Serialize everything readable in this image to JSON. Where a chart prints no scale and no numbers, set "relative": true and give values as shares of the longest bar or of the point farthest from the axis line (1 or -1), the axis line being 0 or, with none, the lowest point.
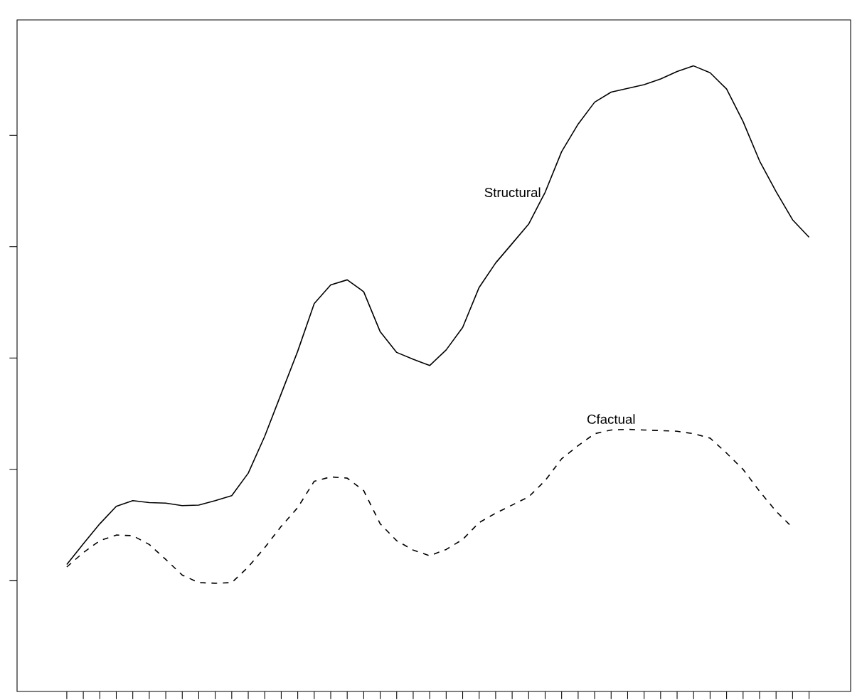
{
  "chart_data": {
    "type": "line",
    "relative": true,
    "categories": [
      null,
      null,
      null,
      null,
      null,
      null,
      null,
      null,
      null,
      null,
      null,
      null,
      null,
      null,
      null,
      null,
      null,
      null,
      null,
      null,
      null,
      null,
      null,
      null,
      null,
      null,
      null,
      null,
      null,
      null,
      null,
      null,
      null,
      null,
      null,
      null,
      null,
      null,
      null,
      null,
      null,
      null,
      null,
      null,
      null,
      null
    ],
    "series": [
      {
        "name": "Structural",
        "color": "#000000",
        "line_style": "solid",
        "values": [
          0.203,
          0.236,
          0.268,
          0.296,
          0.305,
          0.302,
          0.301,
          0.297,
          0.298,
          0.305,
          0.313,
          0.349,
          0.408,
          0.476,
          0.544,
          0.62,
          0.65,
          0.658,
          0.639,
          0.575,
          0.542,
          0.531,
          0.521,
          0.546,
          0.582,
          0.646,
          0.685,
          0.716,
          0.747,
          0.798,
          0.863,
          0.907,
          0.942,
          0.958,
          0.964,
          0.97,
          0.979,
          0.991,
          1,
          0.989,
          0.963,
          0.911,
          0.848,
          0.799,
          0.754,
          0.726
        ]
      },
      {
        "name": "Cfactual",
        "color": "#000000",
        "line_style": "dashed",
        "values": [
          0.199,
          0.222,
          0.241,
          0.25,
          0.249,
          0.235,
          0.211,
          0.186,
          0.174,
          0.173,
          0.174,
          0.199,
          0.23,
          0.264,
          0.294,
          0.336,
          0.343,
          0.341,
          0.321,
          0.268,
          0.241,
          0.226,
          0.217,
          0.227,
          0.243,
          0.27,
          0.285,
          0.298,
          0.311,
          0.337,
          0.372,
          0.393,
          0.412,
          0.418,
          0.419,
          0.418,
          0.417,
          0.416,
          0.412,
          0.405,
          0.381,
          0.355,
          0.32,
          0.288,
          0.262,
          null
        ]
      }
    ]
  }
}
